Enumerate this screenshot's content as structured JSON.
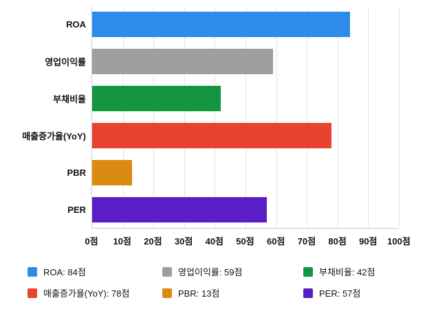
{
  "chart_data": {
    "type": "bar",
    "orientation": "horizontal",
    "title": "",
    "xlabel": "",
    "ylabel": "",
    "categories": [
      "ROA",
      "영업이익률",
      "부채비율",
      "매출증가율(YoY)",
      "PBR",
      "PER"
    ],
    "values": [
      84,
      59,
      42,
      78,
      13,
      57
    ],
    "colors": [
      "#2D8CEA",
      "#9E9E9E",
      "#149641",
      "#E8432E",
      "#DB8A12",
      "#5A1EC8"
    ],
    "xlim": [
      0,
      100
    ],
    "x_ticks": [
      0,
      10,
      20,
      30,
      40,
      50,
      60,
      70,
      80,
      90,
      100
    ],
    "x_tick_suffix": "점",
    "grid": true,
    "legend_position": "bottom"
  },
  "legend": {
    "items": [
      {
        "label": "ROA: 84점",
        "color": "#2D8CEA"
      },
      {
        "label": "영업이익률: 59점",
        "color": "#9E9E9E"
      },
      {
        "label": "부채비율: 42점",
        "color": "#149641"
      },
      {
        "label": "매출증가율(YoY): 78점",
        "color": "#E8432E"
      },
      {
        "label": "PBR: 13점",
        "color": "#DB8A12"
      },
      {
        "label": "PER: 57점",
        "color": "#5A1EC8"
      }
    ]
  }
}
